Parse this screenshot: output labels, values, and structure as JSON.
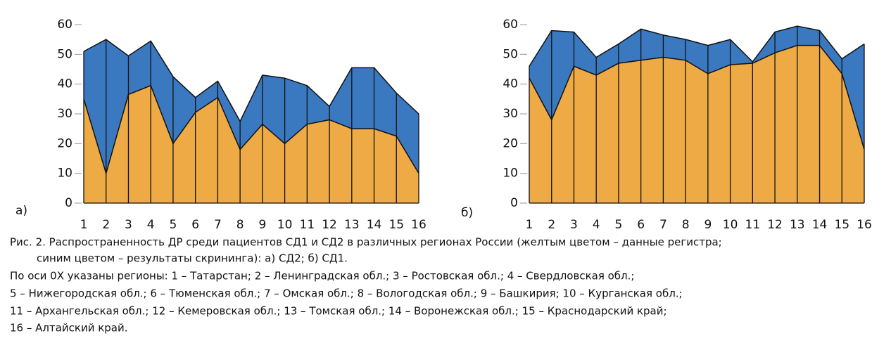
{
  "chart_data": [
    {
      "type": "area",
      "label": "а)",
      "categories": [
        "1",
        "2",
        "3",
        "4",
        "5",
        "6",
        "7",
        "8",
        "9",
        "10",
        "11",
        "12",
        "13",
        "14",
        "15",
        "16"
      ],
      "series": [
        {
          "color": "#3a78c0",
          "values": [
            51,
            55,
            49.5,
            54.5,
            42.5,
            35.5,
            41,
            27.5,
            43,
            42,
            39.5,
            32.5,
            45.5,
            45.5,
            37,
            30
          ]
        },
        {
          "color": "#eeaa44",
          "values": [
            35,
            10,
            36.5,
            39.5,
            20,
            30.5,
            35.5,
            18,
            26.5,
            20,
            26.5,
            28,
            25,
            25,
            22.5,
            10
          ]
        }
      ],
      "ylim": [
        0,
        60
      ],
      "yticks": [
        0,
        10,
        20,
        30,
        40,
        50,
        60
      ]
    },
    {
      "type": "area",
      "label": "б)",
      "categories": [
        "1",
        "2",
        "3",
        "4",
        "5",
        "6",
        "7",
        "8",
        "9",
        "10",
        "11",
        "12",
        "13",
        "14",
        "15",
        "16"
      ],
      "series": [
        {
          "color": "#3a78c0",
          "values": [
            46,
            58,
            57.5,
            49,
            53.5,
            58.5,
            56.5,
            55,
            53,
            55,
            47.5,
            57.5,
            59.5,
            58,
            48.5,
            53.5
          ]
        },
        {
          "color": "#eeaa44",
          "values": [
            42,
            28,
            46,
            43,
            47,
            48,
            49,
            48,
            43.5,
            46.5,
            47,
            50.5,
            53,
            53,
            43.5,
            18
          ]
        }
      ],
      "ylim": [
        0,
        60
      ],
      "yticks": [
        0,
        10,
        20,
        30,
        40,
        50,
        60
      ]
    }
  ],
  "caption": {
    "lines": [
      "Рис. 2. Распространенность ДР среди пациентов СД1 и СД2 в различных регионах России (желтым цветом – данные регистра;",
      "синим цветом – результаты скрининга): а) СД2; б) СД1.",
      "По оси 0Х указаны регионы: 1 – Татарстан; 2 – Ленинградская обл.; 3 – Ростовская обл.; 4 – Свердловская обл.;",
      "5 – Нижегородская обл.; 6 – Тюменская обл.; 7 – Омская обл.; 8 – Вологодская обл.; 9 – Башкирия; 10 – Курганская обл.;",
      "11 – Архангельская обл.; 12 – Кемеровская обл.; 13 – Томская обл.; 14 – Воронежская обл.; 15 – Краснодарский край;",
      "16 – Алтайский край."
    ]
  }
}
